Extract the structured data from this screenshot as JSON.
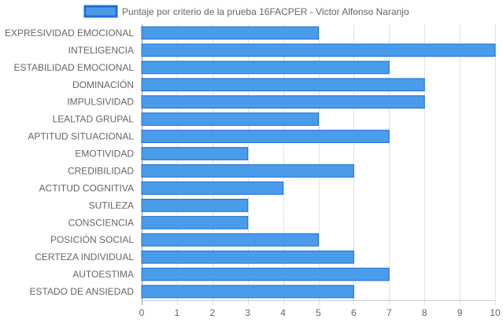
{
  "chart_data": {
    "type": "bar",
    "orientation": "horizontal",
    "categories": [
      "EXPRESIVIDAD EMOCIONAL",
      "INTELIGENCIA",
      "ESTABILIDAD EMOCIONAL",
      "DOMINACIÓN",
      "IMPULSIVIDAD",
      "LEALTAD GRUPAL",
      "APTITUD SITUACIONAL",
      "EMOTIVIDAD",
      "CREDIBILIDAD",
      "ACTITUD COGNITIVA",
      "SUTILEZA",
      "CONSCIENCIA",
      "POSICIÓN SOCIAL",
      "CERTEZA INDIVIDUAL",
      "AUTOESTIMA",
      "ESTADO DE ANSIEDAD"
    ],
    "series": [
      {
        "name": "Puntaje por criterio de la prueba 16FACPER - Victor Alfonso Naranjo",
        "values": [
          5,
          10,
          7,
          8,
          8,
          5,
          7,
          3,
          6,
          4,
          3,
          3,
          5,
          6,
          7,
          6
        ],
        "color": "#4a9bea",
        "border_color": "#1e6fd6"
      }
    ],
    "xlim": [
      0,
      10
    ],
    "x_ticks": [
      0,
      1,
      2,
      3,
      4,
      5,
      6,
      7,
      8,
      9,
      10
    ],
    "grid": true,
    "legend_position": "top"
  }
}
